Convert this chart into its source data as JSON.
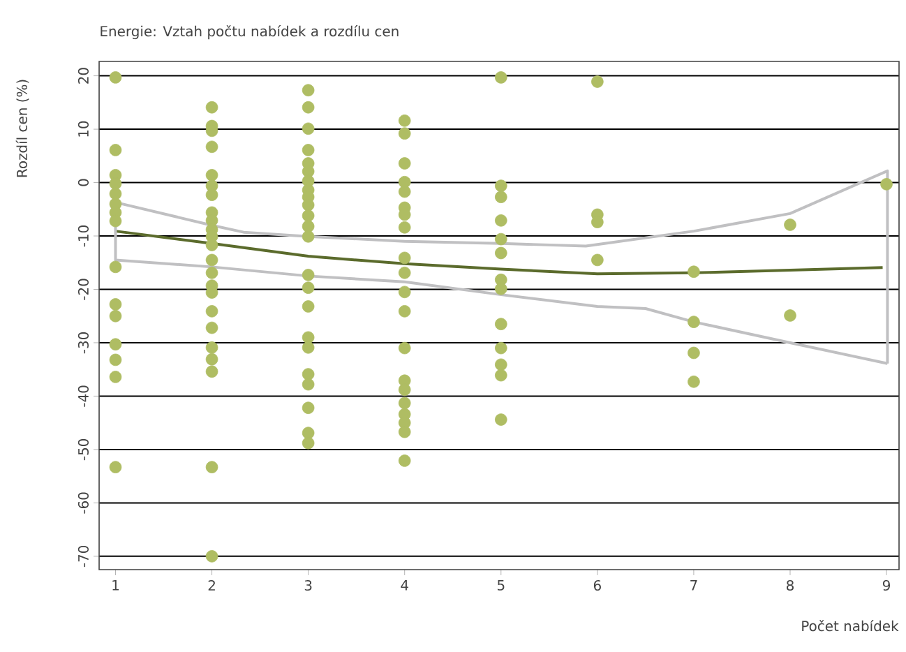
{
  "chart_data": {
    "type": "scatter",
    "title": "Energie: Vztah počtu nabídek a rozdílu cen",
    "xlabel": "Počet nabídek",
    "ylabel": "Rozdíl cen (%)",
    "xlim": [
      0.83,
      9.13
    ],
    "xticks": [
      1,
      2,
      3,
      4,
      5,
      6,
      7,
      8,
      9
    ],
    "ylim": [
      -72.5,
      22.7
    ],
    "yticks": [
      20,
      10,
      0,
      -10,
      -20,
      -30,
      -40,
      -50,
      -60,
      -70
    ],
    "grid": "y",
    "series": [
      {
        "marker": "circle",
        "color": "#afbd63",
        "x": [
          1,
          1,
          1,
          1,
          1,
          1,
          1,
          1,
          1,
          1,
          1,
          1,
          1,
          1,
          1,
          2,
          2,
          2,
          2,
          2,
          2,
          2,
          2,
          2,
          2,
          2,
          2,
          2,
          2,
          2,
          2,
          2,
          2,
          2,
          2,
          2,
          2,
          2,
          3,
          3,
          3,
          3,
          3,
          3,
          3,
          3,
          3,
          3,
          3,
          3,
          3,
          3,
          3,
          3,
          3,
          3,
          3,
          3,
          3,
          3,
          3,
          4,
          4,
          4,
          4,
          4,
          4,
          4,
          4,
          4,
          4,
          4,
          4,
          4,
          4,
          4,
          4,
          4,
          4,
          4,
          4,
          5,
          5,
          5,
          5,
          5,
          5,
          5,
          5,
          5,
          5,
          5,
          5,
          5,
          6,
          6,
          6,
          6,
          7,
          7,
          7,
          7,
          8,
          8,
          9
        ],
        "values": [
          19.7,
          6.1,
          1.4,
          -0.2,
          -2.1,
          -4.0,
          -5.6,
          -7.2,
          -15.8,
          -22.8,
          -25.0,
          -30.3,
          -33.2,
          -36.4,
          -53.3,
          14.1,
          10.6,
          9.7,
          6.7,
          1.4,
          -0.6,
          -2.3,
          -5.6,
          -7.1,
          -8.8,
          -10.1,
          -11.7,
          -14.5,
          -16.9,
          -19.3,
          -20.6,
          -24.1,
          -27.2,
          -30.9,
          -33.1,
          -35.4,
          -53.3,
          -70.0,
          17.3,
          14.1,
          10.1,
          6.1,
          3.6,
          2.1,
          0.3,
          -1.4,
          -2.7,
          -4.2,
          -6.2,
          -8.2,
          -10.1,
          -17.3,
          -19.7,
          -23.2,
          -29.0,
          -30.9,
          -35.9,
          -37.8,
          -42.2,
          -46.9,
          -48.8,
          11.6,
          9.2,
          3.6,
          0.1,
          -1.7,
          -4.7,
          -6.0,
          -8.4,
          -14.1,
          -16.9,
          -20.5,
          -24.1,
          -31.0,
          -37.1,
          -38.8,
          -41.3,
          -43.4,
          -45.0,
          -46.7,
          -52.1,
          19.7,
          -0.6,
          -2.7,
          -7.1,
          -10.6,
          -13.2,
          -18.2,
          -19.9,
          -26.5,
          -31.0,
          -34.1,
          -36.1,
          -44.4,
          18.9,
          -6.0,
          -7.4,
          -14.5,
          -16.7,
          -26.1,
          -31.9,
          -37.3,
          -7.9,
          -24.9,
          -0.3
        ]
      },
      {
        "type": "line",
        "marker": "none",
        "color": "#5b6b2c",
        "x": [
          1,
          2,
          3,
          4,
          5,
          6,
          7,
          8,
          8.96
        ],
        "values": [
          -9.1,
          -11.4,
          -13.8,
          -15.2,
          -16.2,
          -17.1,
          -16.9,
          -16.4,
          -15.9
        ]
      },
      {
        "type": "line",
        "marker": "none",
        "color": "#c0c0c2",
        "x": [
          1,
          2,
          2.33,
          3,
          4,
          5,
          5.88,
          7,
          8,
          9.01,
          9.01
        ],
        "values": [
          -3.7,
          -8.0,
          -9.3,
          -10.1,
          -11.0,
          -11.4,
          -11.9,
          -9.1,
          -5.8,
          2.2,
          -33.9
        ]
      },
      {
        "type": "line",
        "marker": "none",
        "color": "#c0c0c2",
        "x": [
          1,
          1,
          2,
          3,
          4,
          5,
          6,
          6.5,
          7,
          8,
          9.01
        ],
        "values": [
          -3.7,
          -14.5,
          -15.8,
          -17.5,
          -18.6,
          -21.0,
          -23.2,
          -23.6,
          -26.1,
          -30.0,
          -33.9
        ]
      }
    ]
  }
}
